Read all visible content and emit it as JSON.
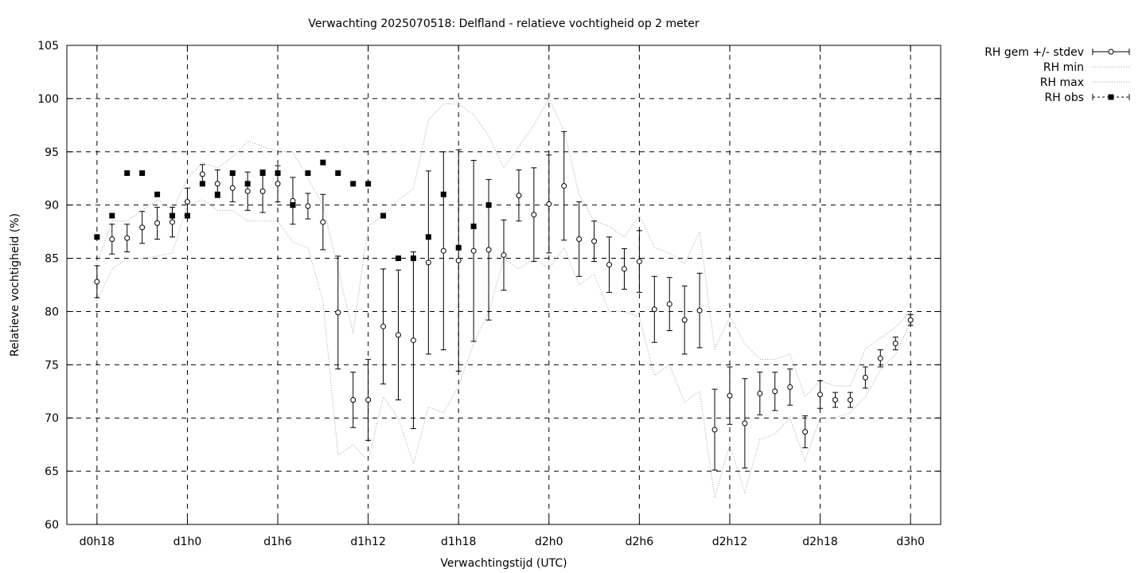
{
  "chart_data": {
    "type": "scatter",
    "title": "Verwachting 2025070518: Delfland - relatieve vochtigheid op 2 meter",
    "xlabel": "Verwachtingstijd (UTC)",
    "ylabel": "Relatieve vochtigheid (%)",
    "xlim": [
      -2,
      56
    ],
    "ylim": [
      60,
      105
    ],
    "grid": true,
    "legend_position": "outside-top-right",
    "x_ticks": [
      {
        "x": 0,
        "label": "d0h18"
      },
      {
        "x": 6,
        "label": "d1h0"
      },
      {
        "x": 12,
        "label": "d1h6"
      },
      {
        "x": 18,
        "label": "d1h12"
      },
      {
        "x": 24,
        "label": "d1h18"
      },
      {
        "x": 30,
        "label": "d2h0"
      },
      {
        "x": 36,
        "label": "d2h6"
      },
      {
        "x": 42,
        "label": "d2h12"
      },
      {
        "x": 48,
        "label": "d2h18"
      },
      {
        "x": 54,
        "label": "d3h0"
      }
    ],
    "y_ticks": [
      60,
      65,
      70,
      75,
      80,
      85,
      90,
      95,
      100,
      105
    ],
    "series": [
      {
        "name": "RH gem +/- stdev",
        "style": "errorbars-open-circle",
        "x": [
          0,
          1,
          2,
          3,
          4,
          5,
          6,
          7,
          8,
          9,
          10,
          11,
          12,
          13,
          14,
          15,
          16,
          17,
          18,
          19,
          20,
          21,
          22,
          23,
          24,
          25,
          26,
          27,
          28,
          29,
          30,
          31,
          32,
          33,
          34,
          35,
          36,
          37,
          38,
          39,
          40,
          41,
          42,
          43,
          44,
          45,
          46,
          47,
          48,
          49,
          50,
          51,
          52,
          53,
          54
        ],
        "mean": [
          82.8,
          86.8,
          86.9,
          87.9,
          88.3,
          88.4,
          90.3,
          92.9,
          92.0,
          91.6,
          91.3,
          91.3,
          92.0,
          90.4,
          89.9,
          88.4,
          79.9,
          71.7,
          71.7,
          78.6,
          77.8,
          77.3,
          84.6,
          85.7,
          84.8,
          85.7,
          85.8,
          85.3,
          90.9,
          89.1,
          90.1,
          91.8,
          86.8,
          86.6,
          84.4,
          84.0,
          84.7,
          80.2,
          80.7,
          79.2,
          80.1,
          68.9,
          72.1,
          69.5,
          72.3,
          72.5,
          72.9,
          68.7,
          72.2,
          71.7,
          71.7,
          73.8,
          75.6,
          77.0,
          79.2
        ],
        "stdev": [
          1.5,
          1.4,
          1.3,
          1.5,
          1.5,
          1.4,
          1.3,
          0.9,
          1.3,
          1.3,
          1.8,
          2.0,
          1.7,
          2.2,
          1.2,
          2.6,
          5.3,
          2.6,
          3.8,
          5.4,
          6.1,
          8.3,
          8.6,
          9.3,
          10.4,
          8.5,
          6.6,
          3.3,
          2.4,
          4.4,
          4.6,
          5.1,
          3.5,
          1.9,
          2.6,
          1.9,
          2.9,
          3.1,
          2.5,
          3.2,
          3.5,
          3.8,
          2.7,
          4.2,
          2.0,
          1.8,
          1.7,
          1.5,
          1.3,
          0.7,
          0.7,
          1.0,
          0.8,
          0.6,
          0.5
        ]
      },
      {
        "name": "RH min",
        "style": "dotted-line",
        "x": [
          0,
          1,
          2,
          3,
          4,
          5,
          6,
          7,
          8,
          9,
          10,
          11,
          12,
          13,
          14,
          15,
          16,
          17,
          18,
          19,
          20,
          21,
          22,
          23,
          24,
          25,
          26,
          27,
          28,
          29,
          30,
          31,
          32,
          33,
          34,
          35,
          36,
          37,
          38,
          39,
          40,
          41,
          42,
          43,
          44,
          45,
          46,
          47,
          48,
          49,
          50,
          51,
          52,
          53,
          54
        ],
        "values": [
          81.0,
          84.0,
          85.0,
          85.0,
          85.2,
          85.5,
          90.0,
          90.5,
          89.5,
          89.5,
          88.5,
          88.5,
          88.5,
          86.5,
          86.0,
          81.0,
          66.5,
          67.5,
          66.0,
          72.0,
          70.0,
          65.7,
          71.0,
          70.5,
          73.0,
          77.0,
          80.0,
          85.0,
          84.0,
          85.0,
          84.0,
          86.0,
          82.5,
          83.5,
          80.0,
          80.0,
          79.5,
          74.0,
          75.0,
          71.5,
          72.5,
          62.5,
          67.5,
          63.0,
          68.0,
          68.5,
          70.0,
          66.0,
          70.0,
          70.0,
          70.5,
          72.0,
          74.5,
          76.0,
          79.0
        ]
      },
      {
        "name": "RH max",
        "style": "dotted-line",
        "x": [
          0,
          1,
          2,
          3,
          4,
          5,
          6,
          7,
          8,
          9,
          10,
          11,
          12,
          13,
          14,
          15,
          16,
          17,
          18,
          19,
          20,
          21,
          22,
          23,
          24,
          25,
          26,
          27,
          28,
          29,
          30,
          31,
          32,
          33,
          34,
          35,
          36,
          37,
          38,
          39,
          40,
          41,
          42,
          43,
          44,
          45,
          46,
          47,
          48,
          49,
          50,
          51,
          52,
          53,
          54
        ],
        "values": [
          84.5,
          88.5,
          88.5,
          89.5,
          90.5,
          89.5,
          92.5,
          94.0,
          93.5,
          94.5,
          96.0,
          95.5,
          95.0,
          95.0,
          92.5,
          90.0,
          84.0,
          78.0,
          88.0,
          89.0,
          90.5,
          91.5,
          98.0,
          99.5,
          99.5,
          98.5,
          96.5,
          93.5,
          95.5,
          97.5,
          100.0,
          97.0,
          91.0,
          88.5,
          88.0,
          87.0,
          89.0,
          86.0,
          85.5,
          84.5,
          87.5,
          76.5,
          79.5,
          77.0,
          75.5,
          75.5,
          76.0,
          72.0,
          73.5,
          73.0,
          73.0,
          76.5,
          77.5,
          78.5,
          80.0
        ]
      },
      {
        "name": "RH obs",
        "style": "filled-square",
        "x": [
          0,
          1,
          2,
          3,
          4,
          5,
          6,
          7,
          8,
          9,
          10,
          11,
          12,
          13,
          14,
          15,
          16,
          17,
          18,
          19,
          20,
          21,
          22,
          23,
          24,
          25,
          26
        ],
        "values": [
          87,
          89,
          93,
          93,
          91,
          89,
          89,
          92,
          91,
          93,
          92,
          93,
          93,
          90,
          93,
          94,
          93,
          92,
          92,
          89,
          85,
          85,
          87,
          91,
          86,
          88,
          90
        ]
      }
    ]
  }
}
